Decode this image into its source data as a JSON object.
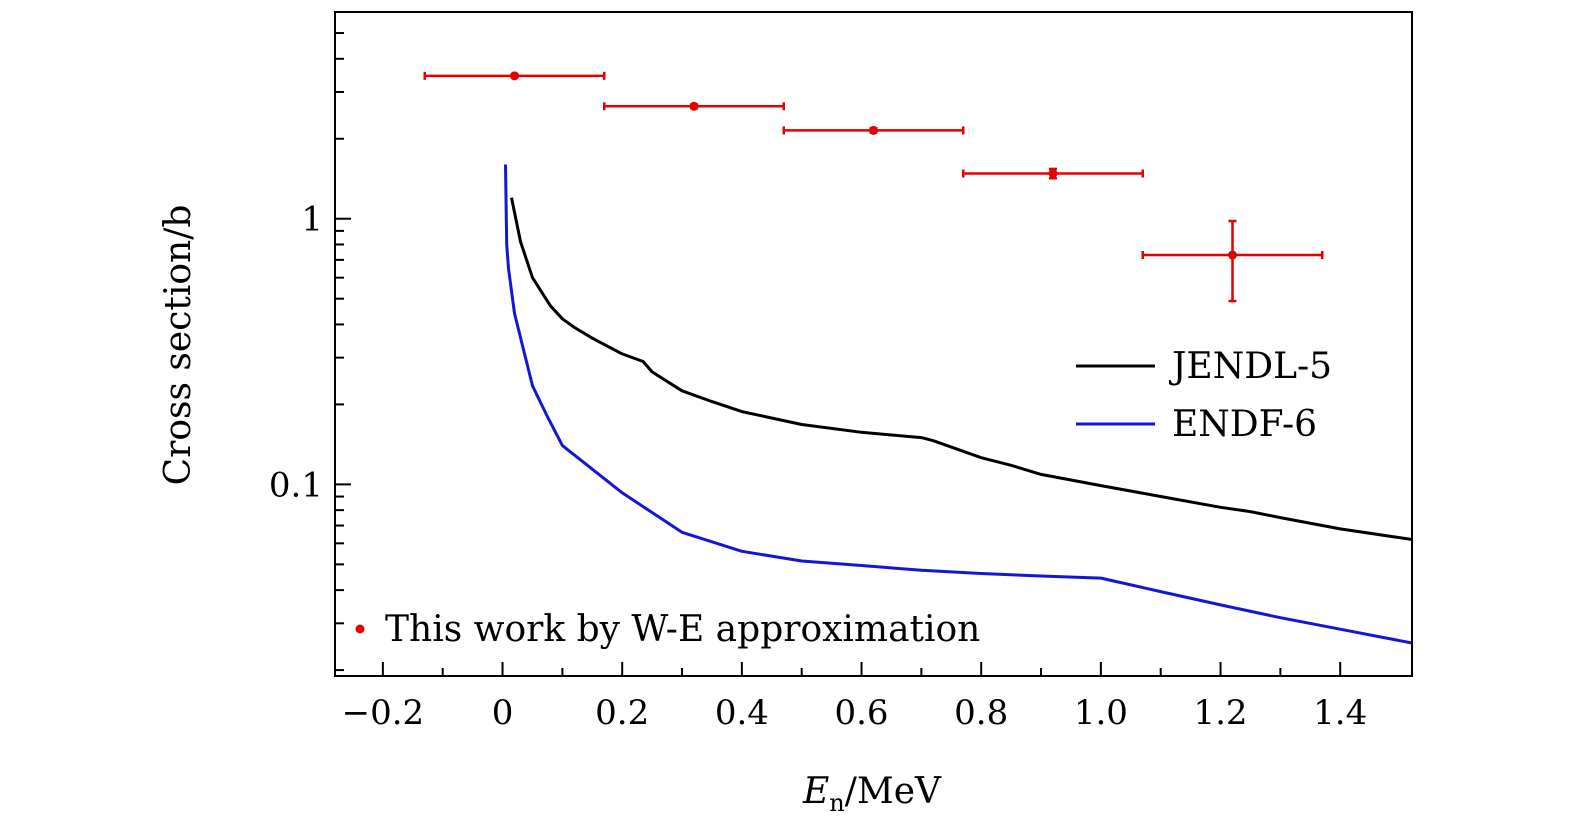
{
  "chart_data": {
    "type": "line",
    "title": "",
    "xlabel": "E_n/MeV",
    "xlabel_symbol": "E",
    "xlabel_subscript": "n",
    "xlabel_unit": "/MeV",
    "ylabel": "Cross section/b",
    "xlim": [
      -0.28,
      1.52
    ],
    "ylim": [
      0.019,
      6.0
    ],
    "yscale": "log",
    "x_ticks": [
      -0.2,
      0,
      0.2,
      0.4,
      0.6,
      0.8,
      1.0,
      1.2,
      1.4
    ],
    "x_tick_labels": [
      "−0.2",
      "0",
      "0.2",
      "0.4",
      "0.6",
      "0.8",
      "1.0",
      "1.2",
      "1.4"
    ],
    "y_ticks": [
      0.1,
      1
    ],
    "y_tick_labels": [
      "0.1",
      "1"
    ],
    "series": [
      {
        "name": "JENDL-5",
        "color": "#000000",
        "x": [
          0.015,
          0.03,
          0.05,
          0.08,
          0.1,
          0.12,
          0.15,
          0.2,
          0.235,
          0.25,
          0.3,
          0.35,
          0.4,
          0.5,
          0.6,
          0.7,
          0.72,
          0.8,
          0.85,
          0.9,
          1.0,
          1.1,
          1.2,
          1.25,
          1.3,
          1.4,
          1.52
        ],
        "y": [
          1.2,
          0.82,
          0.6,
          0.47,
          0.42,
          0.39,
          0.355,
          0.31,
          0.29,
          0.265,
          0.225,
          0.205,
          0.188,
          0.168,
          0.157,
          0.15,
          0.146,
          0.126,
          0.118,
          0.109,
          0.099,
          0.09,
          0.082,
          0.079,
          0.075,
          0.068,
          0.062
        ]
      },
      {
        "name": "ENDF-6",
        "color": "#1515d8",
        "x": [
          0.005,
          0.007,
          0.01,
          0.02,
          0.05,
          0.075,
          0.1,
          0.2,
          0.3,
          0.4,
          0.5,
          0.6,
          0.7,
          0.8,
          0.9,
          1.0,
          1.1,
          1.2,
          1.3,
          1.4,
          1.52
        ],
        "y": [
          1.6,
          0.8,
          0.65,
          0.44,
          0.235,
          0.18,
          0.14,
          0.093,
          0.066,
          0.056,
          0.0515,
          0.0495,
          0.0475,
          0.0462,
          0.0452,
          0.0444,
          0.0395,
          0.0352,
          0.0315,
          0.0285,
          0.0253
        ]
      },
      {
        "name": "This work by W-E approximation",
        "color": "#e60000",
        "type": "errorbar",
        "x": [
          0.02,
          0.32,
          0.62,
          0.92,
          1.22
        ],
        "y": [
          3.45,
          2.65,
          2.15,
          1.48,
          0.73
        ],
        "xerr": [
          0.15,
          0.15,
          0.15,
          0.15,
          0.15
        ],
        "yerr_low": [
          0.04,
          0.04,
          0.04,
          0.06,
          0.24
        ],
        "yerr_high": [
          0.04,
          0.04,
          0.04,
          0.06,
          0.25
        ]
      }
    ],
    "legend": {
      "placement": "right-middle",
      "entries": [
        "JENDL-5",
        "ENDF-6"
      ],
      "points_entry": "This work by W-E approximation",
      "points_placement": "bottom-left"
    }
  }
}
